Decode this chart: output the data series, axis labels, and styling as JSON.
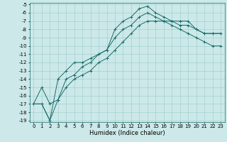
{
  "title": "",
  "xlabel": "Humidex (Indice chaleur)",
  "x": [
    0,
    1,
    2,
    3,
    4,
    5,
    6,
    7,
    8,
    9,
    10,
    11,
    12,
    13,
    14,
    15,
    16,
    17,
    18,
    19,
    20,
    21,
    22,
    23
  ],
  "y_main": [
    -17,
    -15,
    -17,
    -16.5,
    -14,
    -13.5,
    -12.5,
    -12,
    -11,
    -10.5,
    -8,
    -7,
    -6.5,
    -5.5,
    -5.2,
    -6,
    -6.5,
    -7,
    -7,
    -7,
    -8,
    -8.5,
    -8.5,
    -8.5
  ],
  "y_upper": [
    -17,
    -17,
    -19,
    -14,
    -13,
    -12,
    -12,
    -11.5,
    -11,
    -10.5,
    -9,
    -8,
    -7.5,
    -6.5,
    -6,
    -6.5,
    -7,
    -7,
    -7.5,
    -7.5,
    -8,
    -8.5,
    -8.5,
    -8.5
  ],
  "y_lower": [
    -17,
    -17,
    -19,
    -16.5,
    -15,
    -14,
    -13.5,
    -13,
    -12,
    -11.5,
    -10.5,
    -9.5,
    -8.5,
    -7.5,
    -7,
    -7,
    -7,
    -7.5,
    -8,
    -8.5,
    -9,
    -9.5,
    -10,
    -10
  ],
  "ylim_min": -19,
  "ylim_max": -5,
  "yticks": [
    -19,
    -18,
    -17,
    -16,
    -15,
    -14,
    -13,
    -12,
    -11,
    -10,
    -9,
    -8,
    -7,
    -6,
    -5
  ],
  "xtick_labels": [
    "0",
    "1",
    "2",
    "3",
    "4",
    "5",
    "6",
    "7",
    "8",
    "9",
    "10",
    "11",
    "12",
    "13",
    "14",
    "15",
    "16",
    "17",
    "18",
    "19",
    "20",
    "21",
    "22",
    "23"
  ],
  "bg_color": "#cce8e8",
  "line_color": "#1a6b6b",
  "grid_color": "#99cccc",
  "font_color": "#000000",
  "marker_size": 3,
  "line_width": 0.7,
  "tick_fontsize": 5,
  "xlabel_fontsize": 6
}
